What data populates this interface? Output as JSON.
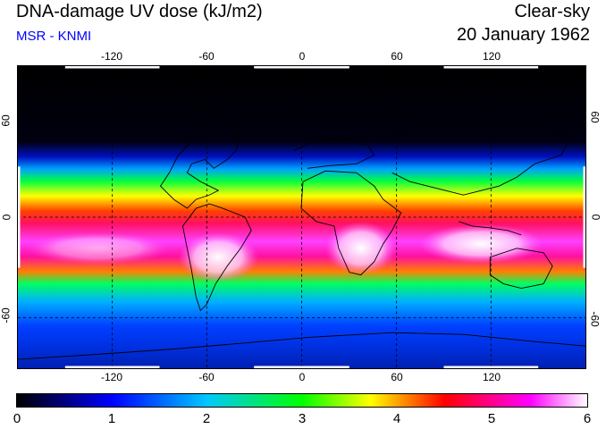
{
  "header": {
    "title": "DNA-damage UV dose (kJ/m2)",
    "subtitle": "MSR - KNMI",
    "subtitle_color": "#0000ff",
    "condition": "Clear-sky",
    "date": "20 January 1962"
  },
  "map": {
    "projection": "equirectangular",
    "lon_range": [
      -180,
      180
    ],
    "lat_range": [
      -90,
      90
    ],
    "lon_ticks": [
      "-120",
      "-60",
      "0",
      "60",
      "120"
    ],
    "lat_ticks": [
      "60",
      "0",
      "-60"
    ],
    "lat_ticks_right": [
      "60",
      "0",
      "-60"
    ],
    "grid": "dashed"
  },
  "colorbar": {
    "labels": [
      "0",
      "1",
      "2",
      "3",
      "4",
      "5",
      "6"
    ],
    "min": 0,
    "max": 6,
    "colors": [
      "#000000",
      "#0000ff",
      "#00c8ff",
      "#00ff00",
      "#ffff00",
      "#ff0000",
      "#ff00ff",
      "#ffffff"
    ]
  }
}
